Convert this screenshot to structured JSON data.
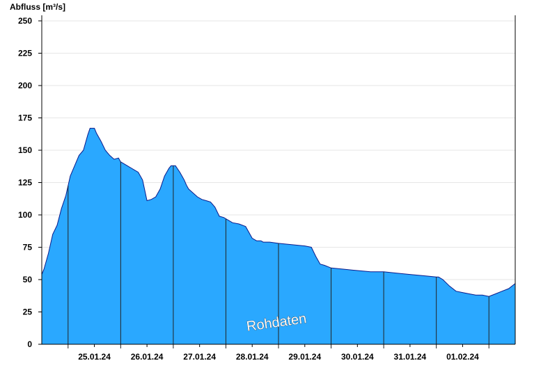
{
  "chart_data": {
    "type": "area",
    "ylabel": "Abfluss [m³/s]",
    "ylim": [
      0,
      250
    ],
    "yticks": [
      0,
      25,
      50,
      75,
      100,
      125,
      150,
      175,
      200,
      225,
      250
    ],
    "xlim": [
      "2024-01-24T12:00",
      "2024-02-02T12:00"
    ],
    "x_tick_labels": [
      "25.01.24",
      "26.01.24",
      "27.01.24",
      "28.01.24",
      "29.01.24",
      "30.01.24",
      "31.01.24",
      "01.02.24"
    ],
    "grid": "horizontal",
    "watermark": "Rohdaten",
    "colors": {
      "fill": "#2aa8ff",
      "line": "#0a1a8a",
      "axis": "#000000",
      "grid": "#e6e6e6",
      "day_line": "#222222"
    },
    "series": [
      {
        "x": [
          "2024-01-24T12:00",
          "2024-01-24T13:00",
          "2024-01-24T15:00",
          "2024-01-24T17:00",
          "2024-01-24T19:00",
          "2024-01-24T21:00",
          "2024-01-24T23:00",
          "2024-01-25T01:00",
          "2024-01-25T03:00",
          "2024-01-25T05:00",
          "2024-01-25T07:00",
          "2024-01-25T09:00",
          "2024-01-25T10:00",
          "2024-01-25T12:00",
          "2024-01-25T13:00",
          "2024-01-25T15:00",
          "2024-01-25T17:00",
          "2024-01-25T19:00",
          "2024-01-25T21:00",
          "2024-01-25T23:00",
          "2024-01-26T00:00",
          "2024-01-26T01:00",
          "2024-01-26T03:00",
          "2024-01-26T04:00",
          "2024-01-26T05:00",
          "2024-01-26T06:00",
          "2024-01-26T08:00",
          "2024-01-26T10:00",
          "2024-01-26T12:00",
          "2024-01-26T14:00",
          "2024-01-26T16:00",
          "2024-01-26T18:00",
          "2024-01-26T20:00",
          "2024-01-26T22:00",
          "2024-01-26T23:00",
          "2024-01-27T01:00",
          "2024-01-27T03:00",
          "2024-01-27T05:00",
          "2024-01-27T06:00",
          "2024-01-27T07:00",
          "2024-01-27T09:00",
          "2024-01-27T11:00",
          "2024-01-27T13:00",
          "2024-01-27T15:00",
          "2024-01-27T17:00",
          "2024-01-27T19:00",
          "2024-01-27T21:00",
          "2024-01-27T23:00",
          "2024-01-28T00:00",
          "2024-01-28T01:00",
          "2024-01-28T03:00",
          "2024-01-28T06:00",
          "2024-01-28T09:00",
          "2024-01-28T12:00",
          "2024-01-28T14:00",
          "2024-01-28T16:00",
          "2024-01-28T17:00",
          "2024-01-28T20:00",
          "2024-01-29T00:00",
          "2024-01-29T06:00",
          "2024-01-29T12:00",
          "2024-01-29T15:00",
          "2024-01-29T17:00",
          "2024-01-29T19:00",
          "2024-01-29T21:00",
          "2024-01-30T00:00",
          "2024-01-30T06:00",
          "2024-01-30T12:00",
          "2024-01-30T18:00",
          "2024-01-31T00:00",
          "2024-01-31T06:00",
          "2024-01-31T12:00",
          "2024-01-31T18:00",
          "2024-02-01T00:00",
          "2024-02-01T01:00",
          "2024-02-01T03:00",
          "2024-02-01T06:00",
          "2024-02-01T09:00",
          "2024-02-01T12:00",
          "2024-02-01T15:00",
          "2024-02-01T18:00",
          "2024-02-01T21:00",
          "2024-02-02T00:00",
          "2024-02-02T03:00",
          "2024-02-02T06:00",
          "2024-02-02T09:00",
          "2024-02-02T12:00"
        ],
        "values": [
          54,
          58,
          70,
          85,
          92,
          105,
          115,
          130,
          138,
          146,
          150,
          162,
          167,
          167,
          163,
          157,
          150,
          146,
          143,
          144,
          141,
          140,
          138,
          137,
          136,
          135,
          133,
          127,
          111,
          112,
          114,
          120,
          130,
          136,
          138,
          138,
          133,
          127,
          123,
          120,
          117,
          114,
          112,
          111,
          110,
          106,
          99,
          98,
          97,
          96,
          94,
          93,
          91,
          82,
          80,
          80,
          79,
          79,
          78,
          77,
          76,
          75,
          68,
          62,
          61,
          59,
          58,
          57,
          56,
          56,
          55,
          54,
          53,
          52,
          52,
          50,
          45,
          41,
          40,
          39,
          38,
          38,
          37,
          39,
          41,
          43,
          47
        ]
      }
    ]
  }
}
